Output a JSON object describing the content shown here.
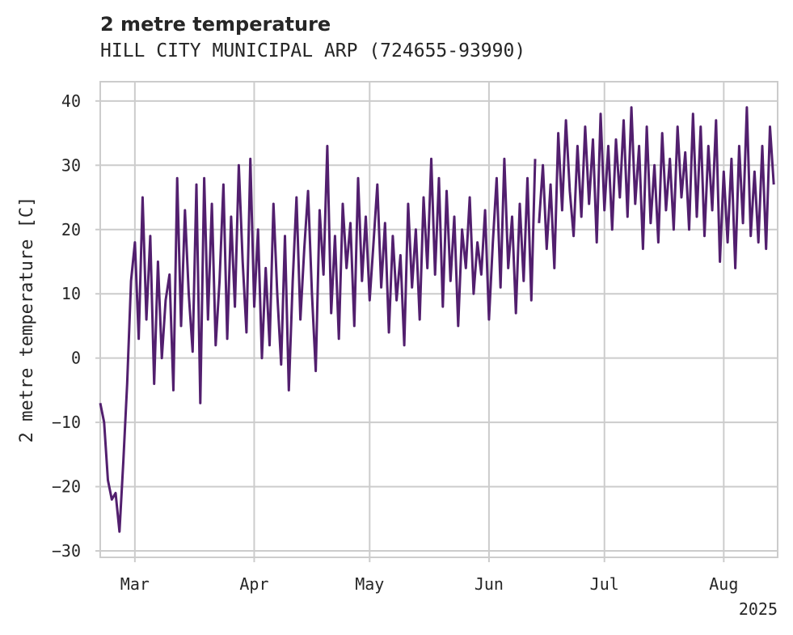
{
  "chart_data": {
    "type": "line",
    "title": "2 metre temperature",
    "subtitle": "HILL CITY MUNICIPAL ARP (724655-93990)",
    "ylabel": "2 metre temperature [C]",
    "xlabel": "",
    "year_label": "2025",
    "xlim": [
      "2025-02-20",
      "2025-08-15"
    ],
    "ylim": [
      -31,
      43
    ],
    "yticks": [
      -30,
      -20,
      -10,
      0,
      10,
      20,
      30,
      40
    ],
    "xticks": [
      {
        "date": "2025-03-01",
        "label": "Mar"
      },
      {
        "date": "2025-04-01",
        "label": "Apr"
      },
      {
        "date": "2025-05-01",
        "label": "May"
      },
      {
        "date": "2025-06-01",
        "label": "Jun"
      },
      {
        "date": "2025-07-01",
        "label": "Jul"
      },
      {
        "date": "2025-08-01",
        "label": "Aug"
      }
    ],
    "grid": true,
    "line_color": "#521f6e",
    "series": [
      {
        "values": [
          [
            "2025-02-20",
            -7
          ],
          [
            "2025-02-21",
            -10
          ],
          [
            "2025-02-22",
            -19
          ],
          [
            "2025-02-23",
            -22
          ],
          [
            "2025-02-24",
            -21
          ],
          [
            "2025-02-25",
            -27
          ],
          [
            "2025-02-26",
            -16
          ],
          [
            "2025-02-27",
            -4
          ],
          [
            "2025-02-28",
            12
          ],
          [
            "2025-03-01",
            18
          ],
          [
            "2025-03-02",
            3
          ],
          [
            "2025-03-03",
            25
          ],
          [
            "2025-03-04",
            6
          ],
          [
            "2025-03-05",
            19
          ],
          [
            "2025-03-06",
            -4
          ],
          [
            "2025-03-07",
            15
          ],
          [
            "2025-03-08",
            0
          ],
          [
            "2025-03-09",
            9
          ],
          [
            "2025-03-10",
            13
          ],
          [
            "2025-03-11",
            -5
          ],
          [
            "2025-03-12",
            28
          ],
          [
            "2025-03-13",
            5
          ],
          [
            "2025-03-14",
            23
          ],
          [
            "2025-03-15",
            10
          ],
          [
            "2025-03-16",
            1
          ],
          [
            "2025-03-17",
            27
          ],
          [
            "2025-03-18",
            -7
          ],
          [
            "2025-03-19",
            28
          ],
          [
            "2025-03-20",
            6
          ],
          [
            "2025-03-21",
            24
          ],
          [
            "2025-03-22",
            2
          ],
          [
            "2025-03-23",
            12
          ],
          [
            "2025-03-24",
            27
          ],
          [
            "2025-03-25",
            3
          ],
          [
            "2025-03-26",
            22
          ],
          [
            "2025-03-27",
            8
          ],
          [
            "2025-03-28",
            30
          ],
          [
            "2025-03-29",
            15
          ],
          [
            "2025-03-30",
            4
          ],
          [
            "2025-03-31",
            31
          ],
          [
            "2025-04-01",
            8
          ],
          [
            "2025-04-02",
            20
          ],
          [
            "2025-04-03",
            0
          ],
          [
            "2025-04-04",
            14
          ],
          [
            "2025-04-05",
            2
          ],
          [
            "2025-04-06",
            24
          ],
          [
            "2025-04-07",
            10
          ],
          [
            "2025-04-08",
            -1
          ],
          [
            "2025-04-09",
            19
          ],
          [
            "2025-04-10",
            -5
          ],
          [
            "2025-04-11",
            12
          ],
          [
            "2025-04-12",
            25
          ],
          [
            "2025-04-13",
            6
          ],
          [
            "2025-04-14",
            17
          ],
          [
            "2025-04-15",
            26
          ],
          [
            "2025-04-16",
            10
          ],
          [
            "2025-04-17",
            -2
          ],
          [
            "2025-04-18",
            23
          ],
          [
            "2025-04-19",
            13
          ],
          [
            "2025-04-20",
            33
          ],
          [
            "2025-04-21",
            7
          ],
          [
            "2025-04-22",
            19
          ],
          [
            "2025-04-23",
            3
          ],
          [
            "2025-04-24",
            24
          ],
          [
            "2025-04-25",
            14
          ],
          [
            "2025-04-26",
            21
          ],
          [
            "2025-04-27",
            5
          ],
          [
            "2025-04-28",
            28
          ],
          [
            "2025-04-29",
            12
          ],
          [
            "2025-04-30",
            22
          ],
          [
            "2025-05-01",
            9
          ],
          [
            "2025-05-02",
            18
          ],
          [
            "2025-05-03",
            27
          ],
          [
            "2025-05-04",
            11
          ],
          [
            "2025-05-05",
            21
          ],
          [
            "2025-05-06",
            4
          ],
          [
            "2025-05-07",
            19
          ],
          [
            "2025-05-08",
            9
          ],
          [
            "2025-05-09",
            16
          ],
          [
            "2025-05-10",
            2
          ],
          [
            "2025-05-11",
            24
          ],
          [
            "2025-05-12",
            11
          ],
          [
            "2025-05-13",
            20
          ],
          [
            "2025-05-14",
            6
          ],
          [
            "2025-05-15",
            25
          ],
          [
            "2025-05-16",
            14
          ],
          [
            "2025-05-17",
            31
          ],
          [
            "2025-05-18",
            13
          ],
          [
            "2025-05-19",
            28
          ],
          [
            "2025-05-20",
            8
          ],
          [
            "2025-05-21",
            26
          ],
          [
            "2025-05-22",
            12
          ],
          [
            "2025-05-23",
            22
          ],
          [
            "2025-05-24",
            5
          ],
          [
            "2025-05-25",
            20
          ],
          [
            "2025-05-26",
            14
          ],
          [
            "2025-05-27",
            25
          ],
          [
            "2025-05-28",
            10
          ],
          [
            "2025-05-29",
            18
          ],
          [
            "2025-05-30",
            13
          ],
          [
            "2025-05-31",
            23
          ],
          [
            "2025-06-01",
            6
          ],
          [
            "2025-06-02",
            18
          ],
          [
            "2025-06-03",
            28
          ],
          [
            "2025-06-04",
            11
          ],
          [
            "2025-06-05",
            31
          ],
          [
            "2025-06-06",
            14
          ],
          [
            "2025-06-07",
            22
          ],
          [
            "2025-06-08",
            7
          ],
          [
            "2025-06-09",
            24
          ],
          [
            "2025-06-10",
            12
          ],
          [
            "2025-06-11",
            28
          ],
          [
            "2025-06-12",
            9
          ],
          [
            "2025-06-13",
            31
          ],
          null,
          [
            "2025-06-14",
            21
          ],
          [
            "2025-06-15",
            30
          ],
          [
            "2025-06-16",
            17
          ],
          [
            "2025-06-17",
            27
          ],
          [
            "2025-06-18",
            14
          ],
          [
            "2025-06-19",
            35
          ],
          [
            "2025-06-20",
            23
          ],
          [
            "2025-06-21",
            37
          ],
          [
            "2025-06-22",
            26
          ],
          [
            "2025-06-23",
            19
          ],
          [
            "2025-06-24",
            33
          ],
          [
            "2025-06-25",
            22
          ],
          [
            "2025-06-26",
            36
          ],
          [
            "2025-06-27",
            24
          ],
          [
            "2025-06-28",
            34
          ],
          [
            "2025-06-29",
            18
          ],
          [
            "2025-06-30",
            38
          ],
          [
            "2025-07-01",
            23
          ],
          [
            "2025-07-02",
            33
          ],
          [
            "2025-07-03",
            20
          ],
          [
            "2025-07-04",
            34
          ],
          [
            "2025-07-05",
            25
          ],
          [
            "2025-07-06",
            37
          ],
          [
            "2025-07-07",
            22
          ],
          [
            "2025-07-08",
            39
          ],
          [
            "2025-07-09",
            24
          ],
          [
            "2025-07-10",
            33
          ],
          [
            "2025-07-11",
            17
          ],
          [
            "2025-07-12",
            36
          ],
          [
            "2025-07-13",
            21
          ],
          [
            "2025-07-14",
            30
          ],
          [
            "2025-07-15",
            18
          ],
          [
            "2025-07-16",
            35
          ],
          [
            "2025-07-17",
            23
          ],
          [
            "2025-07-18",
            31
          ],
          [
            "2025-07-19",
            20
          ],
          [
            "2025-07-20",
            36
          ],
          [
            "2025-07-21",
            25
          ],
          [
            "2025-07-22",
            32
          ],
          [
            "2025-07-23",
            20
          ],
          [
            "2025-07-24",
            38
          ],
          [
            "2025-07-25",
            22
          ],
          [
            "2025-07-26",
            36
          ],
          [
            "2025-07-27",
            19
          ],
          [
            "2025-07-28",
            33
          ],
          [
            "2025-07-29",
            23
          ],
          [
            "2025-07-30",
            37
          ],
          [
            "2025-07-31",
            15
          ],
          [
            "2025-08-01",
            29
          ],
          [
            "2025-08-02",
            18
          ],
          [
            "2025-08-03",
            31
          ],
          [
            "2025-08-04",
            14
          ],
          [
            "2025-08-05",
            33
          ],
          [
            "2025-08-06",
            21
          ],
          [
            "2025-08-07",
            39
          ],
          [
            "2025-08-08",
            19
          ],
          [
            "2025-08-09",
            29
          ],
          [
            "2025-08-10",
            18
          ],
          [
            "2025-08-11",
            33
          ],
          [
            "2025-08-12",
            17
          ],
          [
            "2025-08-13",
            36
          ],
          [
            "2025-08-14",
            27
          ]
        ]
      }
    ]
  }
}
